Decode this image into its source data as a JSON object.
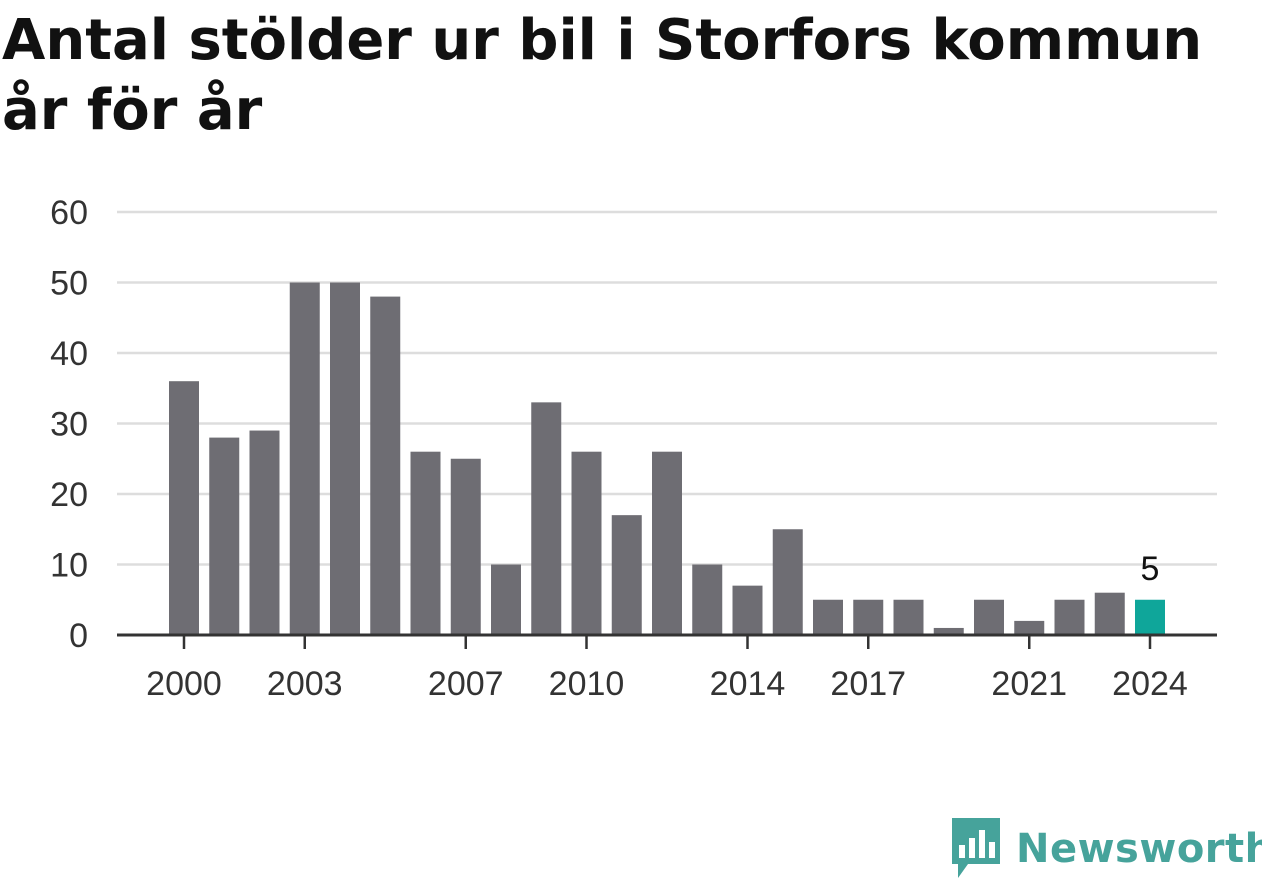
{
  "chart_data": {
    "type": "bar",
    "title": "Antal stölder ur bil i Storfors kommun år för år",
    "x": [
      2000,
      2001,
      2002,
      2003,
      2004,
      2005,
      2006,
      2007,
      2008,
      2009,
      2010,
      2011,
      2012,
      2013,
      2014,
      2015,
      2016,
      2017,
      2018,
      2019,
      2020,
      2021,
      2022,
      2023,
      2024
    ],
    "values": [
      36,
      28,
      29,
      50,
      50,
      48,
      26,
      25,
      10,
      33,
      26,
      17,
      26,
      10,
      7,
      15,
      5,
      5,
      5,
      1,
      5,
      2,
      5,
      6,
      5
    ],
    "x_tick_labels": [
      "2000",
      "2003",
      "2007",
      "2010",
      "2014",
      "2017",
      "2021",
      "2024"
    ],
    "y_ticks": [
      0,
      10,
      20,
      30,
      40,
      50,
      60
    ],
    "ylim": [
      0,
      60
    ],
    "highlight": {
      "x": 2024,
      "label": "5"
    },
    "grid": true,
    "colors": {
      "bar": "#6e6d73",
      "highlight": "#0fa69a",
      "grid": "#dddddd",
      "axis": "#333333"
    }
  },
  "brand": {
    "name": "Newsworthy",
    "icon": "newsworthy-logo-icon",
    "color": "#46a39b"
  }
}
